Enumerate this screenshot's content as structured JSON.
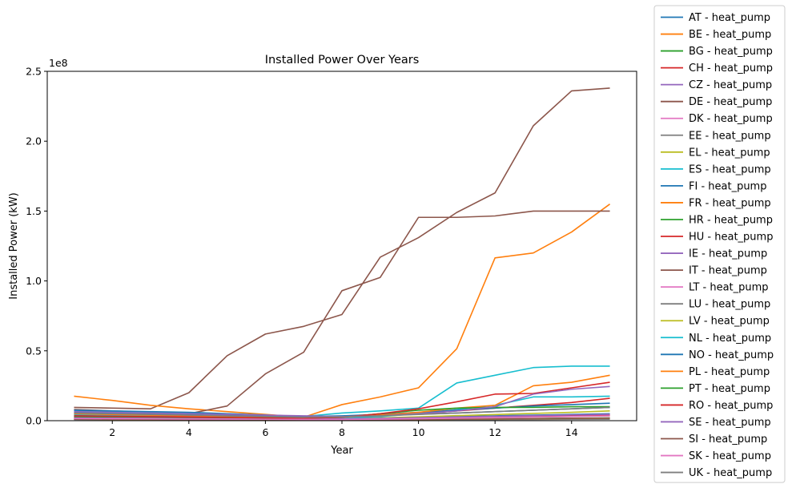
{
  "chart_data": {
    "type": "line",
    "title": "Installed Power Over Years",
    "xlabel": "Year",
    "ylabel": "Installed Power (kW)",
    "y_offset_label": "1e8",
    "xlim": [
      0.3,
      15.7
    ],
    "ylim": [
      0,
      250000000
    ],
    "x_ticks": [
      2,
      4,
      6,
      8,
      10,
      12,
      14
    ],
    "x_tick_labels": [
      "2",
      "4",
      "6",
      "8",
      "10",
      "12",
      "14"
    ],
    "y_ticks": [
      0,
      50000000,
      100000000,
      150000000,
      200000000,
      250000000
    ],
    "y_tick_labels": [
      "0.0",
      "0.5",
      "1.0",
      "1.5",
      "2.0",
      "2.5"
    ],
    "grid": false,
    "legend_position": "right, outside plot",
    "x": [
      1,
      2,
      3,
      4,
      5,
      6,
      7,
      8,
      9,
      10,
      11,
      12,
      13,
      14,
      15
    ],
    "series": [
      {
        "name": "AT - heat_pump",
        "color": "#1f77b4",
        "values": [
          4000000,
          3500000,
          3000000,
          2700000,
          2300000,
          1800000,
          1500000,
          1500000,
          2000000,
          2500000,
          3000000,
          3500000,
          4000000,
          4500000,
          5000000
        ]
      },
      {
        "name": "BE - heat_pump",
        "color": "#ff7f0e",
        "values": [
          3000000,
          2700000,
          2400000,
          2100000,
          1800000,
          1500000,
          1200000,
          1300000,
          1600000,
          2000000,
          2400000,
          2800000,
          3200000,
          3600000,
          4000000
        ]
      },
      {
        "name": "BG - heat_pump",
        "color": "#2ca02c",
        "values": [
          1500000,
          1300000,
          1100000,
          1000000,
          900000,
          800000,
          700000,
          700000,
          800000,
          1000000,
          1200000,
          1400000,
          1600000,
          1800000,
          2000000
        ]
      },
      {
        "name": "CH - heat_pump",
        "color": "#d62728",
        "values": [
          5000000,
          4500000,
          4000000,
          3500000,
          3000000,
          2500000,
          2000000,
          2500000,
          3500000,
          5000000,
          7000000,
          9000000,
          11000000,
          13000000,
          16000000
        ]
      },
      {
        "name": "CZ - heat_pump",
        "color": "#9467bd",
        "values": [
          2500000,
          2200000,
          2000000,
          1800000,
          1600000,
          1400000,
          1200000,
          1300000,
          1600000,
          2000000,
          2500000,
          3000000,
          3500000,
          4000000,
          4500000
        ]
      },
      {
        "name": "DE - heat_pump",
        "color": "#8c564b",
        "values": [
          9500000,
          9000000,
          8500000,
          20000000,
          46500000,
          62000000,
          67500000,
          76000000,
          117000000,
          131000000,
          149000000,
          163000000,
          211000000,
          236000000,
          238000000
        ]
      },
      {
        "name": "DK - heat_pump",
        "color": "#e377c2",
        "values": [
          2000000,
          1800000,
          1600000,
          1400000,
          1200000,
          1000000,
          900000,
          1000000,
          1300000,
          1600000,
          2000000,
          2400000,
          2800000,
          3200000,
          3600000
        ]
      },
      {
        "name": "EE - heat_pump",
        "color": "#7f7f7f",
        "values": [
          1000000,
          900000,
          800000,
          700000,
          600000,
          500000,
          450000,
          500000,
          600000,
          800000,
          1000000,
          1200000,
          1400000,
          1600000,
          1800000
        ]
      },
      {
        "name": "EL - heat_pump",
        "color": "#bcbd22",
        "values": [
          3000000,
          2700000,
          2400000,
          2100000,
          1800000,
          1500000,
          1300000,
          1500000,
          2000000,
          2800000,
          3600000,
          4400000,
          5200000,
          6000000,
          7000000
        ]
      },
      {
        "name": "ES - heat_pump",
        "color": "#17becf",
        "values": [
          4500000,
          4000000,
          3500000,
          3000000,
          2500000,
          2000000,
          1500000,
          2000000,
          3000000,
          5000000,
          8000000,
          11000000,
          17000000,
          17000000,
          17500000
        ]
      },
      {
        "name": "FI - heat_pump",
        "color": "#1f77b4",
        "values": [
          6000000,
          5500000,
          5000000,
          4500000,
          4000000,
          3500000,
          3000000,
          3200000,
          3800000,
          4600000,
          5500000,
          6500000,
          7500000,
          8500000,
          9500000
        ]
      },
      {
        "name": "FR - heat_pump",
        "color": "#ff7f0e",
        "values": [
          17500000,
          14500000,
          11000000,
          8500000,
          6500000,
          4500000,
          2500000,
          11500000,
          17000000,
          23500000,
          51500000,
          116500000,
          120000000,
          135000000,
          155000000
        ]
      },
      {
        "name": "HR - heat_pump",
        "color": "#2ca02c",
        "values": [
          1200000,
          1100000,
          1000000,
          900000,
          800000,
          700000,
          600000,
          600000,
          700000,
          900000,
          1100000,
          1300000,
          1500000,
          1700000,
          1900000
        ]
      },
      {
        "name": "HU - heat_pump",
        "color": "#d62728",
        "values": [
          2000000,
          1800000,
          1600000,
          1400000,
          1200000,
          1000000,
          900000,
          1000000,
          1300000,
          1700000,
          2100000,
          2500000,
          2900000,
          3300000,
          3700000
        ]
      },
      {
        "name": "IE - heat_pump",
        "color": "#9467bd",
        "values": [
          2500000,
          2300000,
          2100000,
          1900000,
          1700000,
          1500000,
          1300000,
          1400000,
          1700000,
          2100000,
          2600000,
          3100000,
          3600000,
          4100000,
          4600000
        ]
      },
      {
        "name": "IT - heat_pump",
        "color": "#8c564b",
        "values": [
          8000000,
          7000000,
          6000000,
          5000000,
          10500000,
          33500000,
          49000000,
          93000000,
          102500000,
          145500000,
          145500000,
          146500000,
          150000000,
          150000000,
          150000000
        ]
      },
      {
        "name": "LT - heat_pump",
        "color": "#e377c2",
        "values": [
          1200000,
          1100000,
          1000000,
          900000,
          800000,
          700000,
          600000,
          600000,
          700000,
          900000,
          1100000,
          1300000,
          1500000,
          1700000,
          1900000
        ]
      },
      {
        "name": "LU - heat_pump",
        "color": "#7f7f7f",
        "values": [
          800000,
          700000,
          600000,
          550000,
          500000,
          450000,
          400000,
          400000,
          450000,
          550000,
          650000,
          750000,
          850000,
          950000,
          1050000
        ]
      },
      {
        "name": "LV - heat_pump",
        "color": "#bcbd22",
        "values": [
          1000000,
          900000,
          800000,
          700000,
          600000,
          500000,
          450000,
          500000,
          600000,
          800000,
          1000000,
          1200000,
          1400000,
          1600000,
          1800000
        ]
      },
      {
        "name": "NL - heat_pump",
        "color": "#17becf",
        "values": [
          7000000,
          6500000,
          6000000,
          5500000,
          5000000,
          4000000,
          3000000,
          5500000,
          7000000,
          9000000,
          27000000,
          32500000,
          38000000,
          39000000,
          39000000
        ]
      },
      {
        "name": "NO - heat_pump",
        "color": "#1f77b4",
        "values": [
          7500000,
          7000000,
          6500000,
          6000000,
          5000000,
          4000000,
          3000000,
          3500000,
          4500000,
          6000000,
          7500000,
          9000000,
          10500000,
          11500000,
          12500000
        ]
      },
      {
        "name": "PL - heat_pump",
        "color": "#ff7f0e",
        "values": [
          5000000,
          4500000,
          4000000,
          3500000,
          3000000,
          2500000,
          2000000,
          2500000,
          4000000,
          6000000,
          9000000,
          11000000,
          25000000,
          27500000,
          32500000
        ]
      },
      {
        "name": "PT - heat_pump",
        "color": "#2ca02c",
        "values": [
          3000000,
          2800000,
          2600000,
          2400000,
          2200000,
          2000000,
          1800000,
          2500000,
          5000000,
          7500000,
          9000000,
          9500000,
          9500000,
          10000000,
          10000000
        ]
      },
      {
        "name": "RO - heat_pump",
        "color": "#d62728",
        "values": [
          3500000,
          3200000,
          2900000,
          2600000,
          2300000,
          2000000,
          1800000,
          2500000,
          5000000,
          8500000,
          13500000,
          19000000,
          19500000,
          23500000,
          27500000
        ]
      },
      {
        "name": "SE - heat_pump",
        "color": "#9467bd",
        "values": [
          6500000,
          6000000,
          5500000,
          5000000,
          4500000,
          4000000,
          3500000,
          3000000,
          3500000,
          5000000,
          7000000,
          10000000,
          19000000,
          22500000,
          24500000
        ]
      },
      {
        "name": "SI - heat_pump",
        "color": "#8c564b",
        "values": [
          1000000,
          900000,
          800000,
          700000,
          600000,
          500000,
          450000,
          500000,
          600000,
          800000,
          1000000,
          1200000,
          1400000,
          1600000,
          1800000
        ]
      },
      {
        "name": "SK - heat_pump",
        "color": "#e377c2",
        "values": [
          1500000,
          1400000,
          1300000,
          1200000,
          1100000,
          1000000,
          900000,
          900000,
          1100000,
          1400000,
          1800000,
          2200000,
          2600000,
          3000000,
          3400000
        ]
      },
      {
        "name": "UK - heat_pump",
        "color": "#7f7f7f",
        "values": [
          5500000,
          5000000,
          4500000,
          4000000,
          3500000,
          3000000,
          2500000,
          2800000,
          3500000,
          4500000,
          5500000,
          6500000,
          7500000,
          8500000,
          9500000
        ]
      }
    ]
  }
}
